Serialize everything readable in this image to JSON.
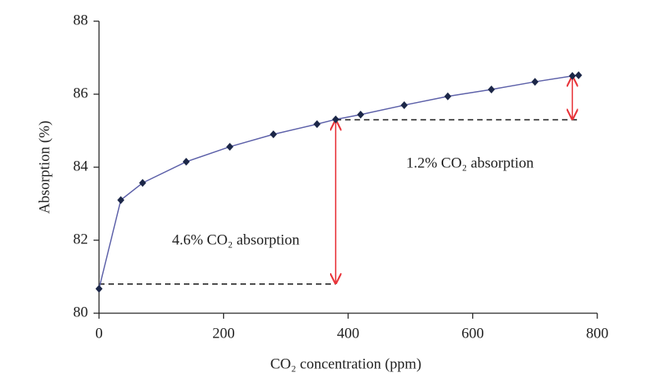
{
  "chart_data": {
    "type": "line",
    "x_label": "CO₂ concentration (ppm)",
    "y_label": "Absorption (%)",
    "x": [
      0,
      35,
      70,
      140,
      210,
      280,
      350,
      380,
      420,
      490,
      560,
      630,
      700,
      760,
      770
    ],
    "series": [
      {
        "color": "#5b5fa8",
        "marker_color": "#1c2748",
        "values": [
          80.67,
          83.1,
          83.57,
          84.15,
          84.56,
          84.9,
          85.18,
          85.31,
          85.44,
          85.7,
          85.94,
          86.13,
          86.34,
          86.5,
          86.52
        ]
      }
    ],
    "xlim": [
      0,
      800
    ],
    "xticks": [
      0,
      200,
      400,
      600,
      800
    ],
    "ylim": [
      80,
      88
    ],
    "yticks": [
      80,
      82,
      84,
      86,
      88
    ],
    "hlines": [
      {
        "y": 80.8,
        "x": [
          0,
          380
        ]
      },
      {
        "y": 85.3,
        "x": [
          380,
          770
        ]
      }
    ],
    "arrows": [
      {
        "x": 380,
        "y": [
          80.8,
          85.3
        ],
        "color": "#e8343a"
      },
      {
        "x": 760,
        "y": [
          85.3,
          86.5
        ],
        "color": "#e8343a"
      }
    ],
    "annotations": [
      "4.6% CO₂ absorption",
      "1.2% CO₂ absorption"
    ]
  }
}
